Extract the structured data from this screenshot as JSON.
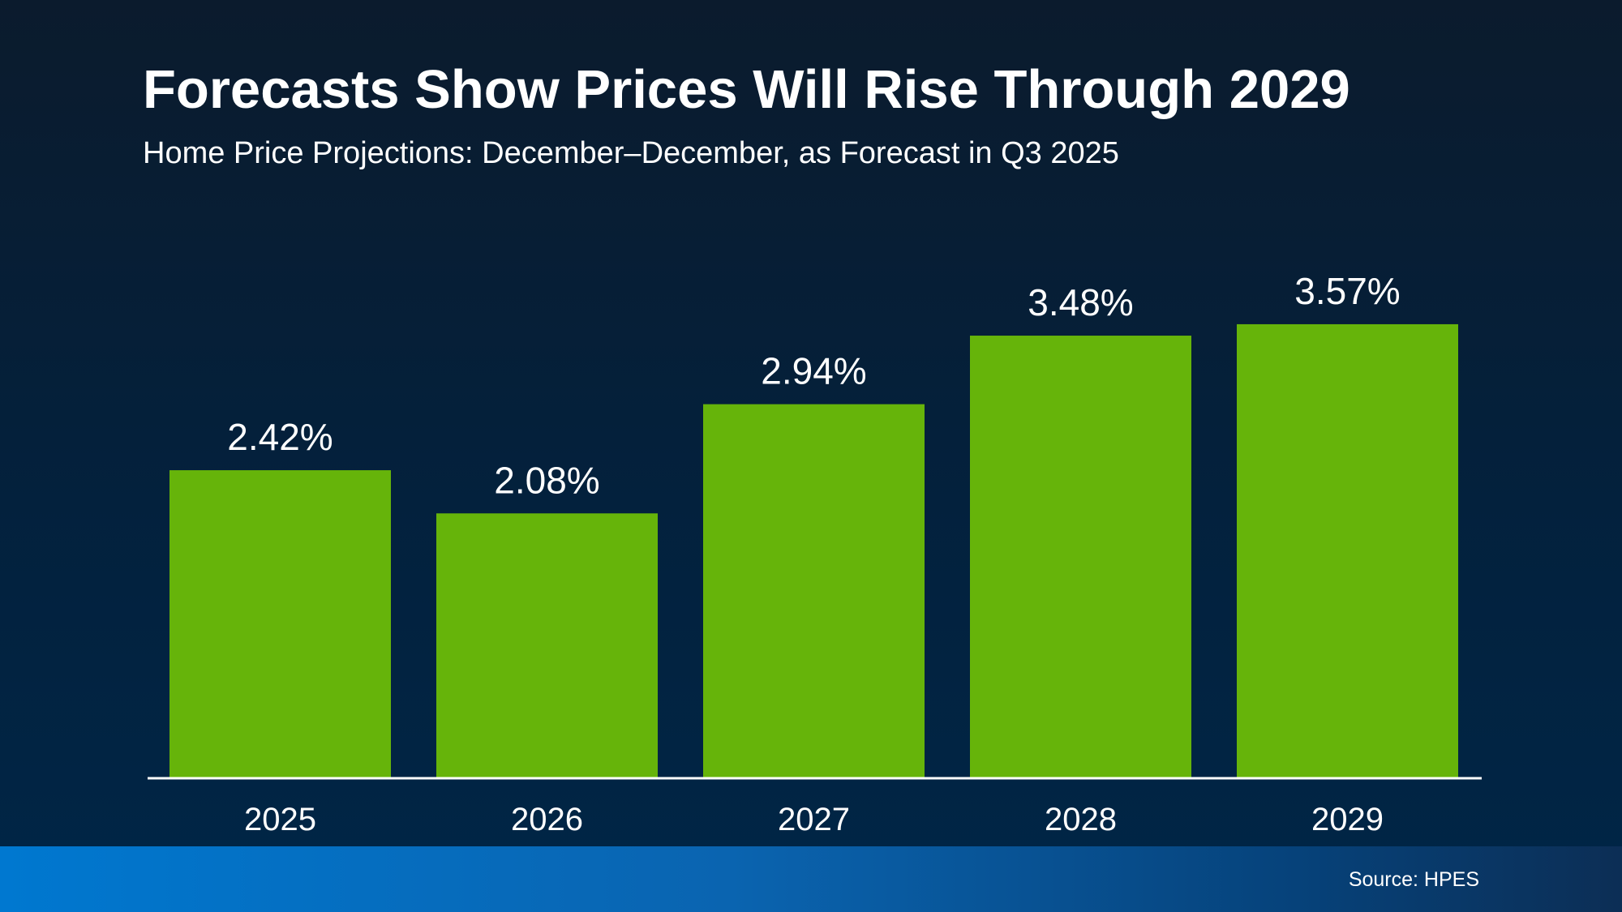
{
  "chart_data": {
    "type": "bar",
    "title": "Forecasts Show Prices Will Rise Through 2029",
    "subtitle": "Home Price Projections: December–December, as Forecast in Q3 2025",
    "categories": [
      "2025",
      "2026",
      "2027",
      "2028",
      "2029"
    ],
    "values": [
      2.42,
      2.08,
      2.94,
      3.48,
      3.57
    ],
    "data_labels": [
      "2.42%",
      "2.08%",
      "2.94%",
      "3.48%",
      "3.57%"
    ],
    "xlabel": "",
    "ylabel": "",
    "ylim": [
      0,
      3.57
    ],
    "grid": false,
    "bar_color": "#66b40a",
    "axis_color": "#ffffff"
  },
  "footer": {
    "source": "Source: HPES"
  }
}
